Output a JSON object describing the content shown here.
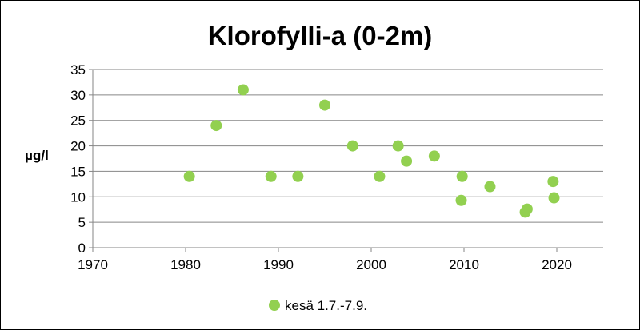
{
  "chart_data": {
    "type": "scatter",
    "title": "Klorofylli-a (0-2m)",
    "ylabel": "µg/l",
    "xlabel": "",
    "xlim": [
      1970,
      2025
    ],
    "ylim": [
      0,
      35
    ],
    "x_ticks": [
      1970,
      1980,
      1990,
      2000,
      2010,
      2020
    ],
    "y_ticks": [
      0,
      5,
      10,
      15,
      20,
      25,
      30,
      35
    ],
    "grid": "horizontal",
    "legend_position": "bottom",
    "series": [
      {
        "name": "kesä 1.7.-7.9.",
        "color": "#92d050",
        "points": [
          {
            "x": 1980.4,
            "y": 14
          },
          {
            "x": 1983.3,
            "y": 24
          },
          {
            "x": 1986.2,
            "y": 31
          },
          {
            "x": 1989.2,
            "y": 14
          },
          {
            "x": 1992.1,
            "y": 14
          },
          {
            "x": 1995.0,
            "y": 28
          },
          {
            "x": 1998.0,
            "y": 20
          },
          {
            "x": 2000.9,
            "y": 14
          },
          {
            "x": 2002.9,
            "y": 20
          },
          {
            "x": 2003.8,
            "y": 17
          },
          {
            "x": 2006.8,
            "y": 18
          },
          {
            "x": 2009.8,
            "y": 14
          },
          {
            "x": 2009.7,
            "y": 9.3
          },
          {
            "x": 2012.8,
            "y": 12
          },
          {
            "x": 2016.6,
            "y": 7
          },
          {
            "x": 2016.8,
            "y": 7.6
          },
          {
            "x": 2019.6,
            "y": 13
          },
          {
            "x": 2019.7,
            "y": 9.8
          }
        ]
      }
    ]
  }
}
